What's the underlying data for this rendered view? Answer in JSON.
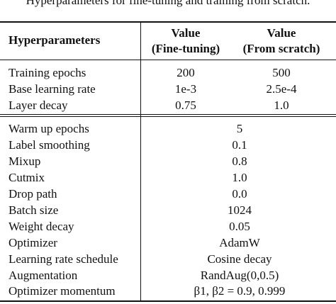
{
  "caption": "Hyperparameters for fine-tuning and training from scratch.",
  "header": {
    "col0": "Hyperparameters",
    "col1_line1": "Value",
    "col1_line2": "(Fine-tuning)",
    "col2_line1": "Value",
    "col2_line2": "(From scratch)"
  },
  "group1": [
    {
      "name": "Training epochs",
      "ft": "200",
      "fs": "500"
    },
    {
      "name": "Base learning rate",
      "ft": "1e-3",
      "fs": "2.5e-4"
    },
    {
      "name": "Layer decay",
      "ft": "0.75",
      "fs": "1.0"
    }
  ],
  "group2": [
    {
      "name": "Warm up epochs",
      "value": "5"
    },
    {
      "name": "Label smoothing",
      "value": "0.1"
    },
    {
      "name": "Mixup",
      "value": "0.8"
    },
    {
      "name": "Cutmix",
      "value": "1.0"
    },
    {
      "name": "Drop path",
      "value": "0.0"
    },
    {
      "name": "Batch size",
      "value": "1024"
    },
    {
      "name": "Weight decay",
      "value": "0.05"
    },
    {
      "name": "Optimizer",
      "value": "AdamW"
    },
    {
      "name": "Learning rate schedule",
      "value": "Cosine decay"
    },
    {
      "name": "Augmentation",
      "value": "RandAug(0,0.5)"
    },
    {
      "name": "Optimizer momentum",
      "value": "β1, β2 = 0.9, 0.999"
    }
  ]
}
